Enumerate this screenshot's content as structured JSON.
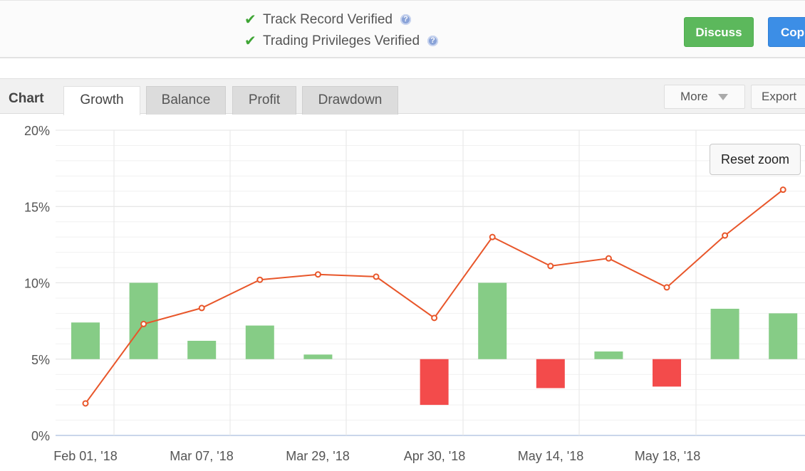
{
  "verification": {
    "track_record": "Track Record Verified",
    "trading_privileges": "Trading Privileges Verified",
    "check_icon": "check-icon",
    "help_icon": "help-icon"
  },
  "actions": {
    "discuss": "Discuss",
    "copy": "Cop"
  },
  "chart_header": {
    "title": "Chart",
    "tabs": [
      "Growth",
      "Balance",
      "Profit",
      "Drawdown"
    ],
    "active_tab": "Growth",
    "more": "More",
    "export": "Export"
  },
  "reset_zoom": "Reset zoom",
  "colors": {
    "line": "#e8562a",
    "bar_positive": "#86cc86",
    "bar_negative": "#f34b4b",
    "discuss": "#5cb85c",
    "copy": "#3c8ee6"
  },
  "chart_data": {
    "type": "bar",
    "ylim": [
      0,
      20
    ],
    "y_ticks": [
      "0%",
      "5%",
      "10%",
      "15%",
      "20%"
    ],
    "x_tick_labels": [
      "Feb 01, '18",
      "Mar 07, '18",
      "Mar 29, '18",
      "Apr 30, '18",
      "May 14, '18",
      "May 18, '18"
    ],
    "bar_baseline": 5,
    "bars": [
      7.4,
      10.0,
      6.2,
      7.2,
      5.3,
      null,
      2.0,
      10.0,
      3.1,
      5.5,
      3.2,
      8.3,
      8.0
    ],
    "line": [
      2.1,
      7.3,
      8.35,
      10.2,
      10.55,
      10.4,
      7.7,
      13.0,
      11.1,
      11.6,
      9.7,
      13.1,
      16.1
    ],
    "grid": true
  }
}
